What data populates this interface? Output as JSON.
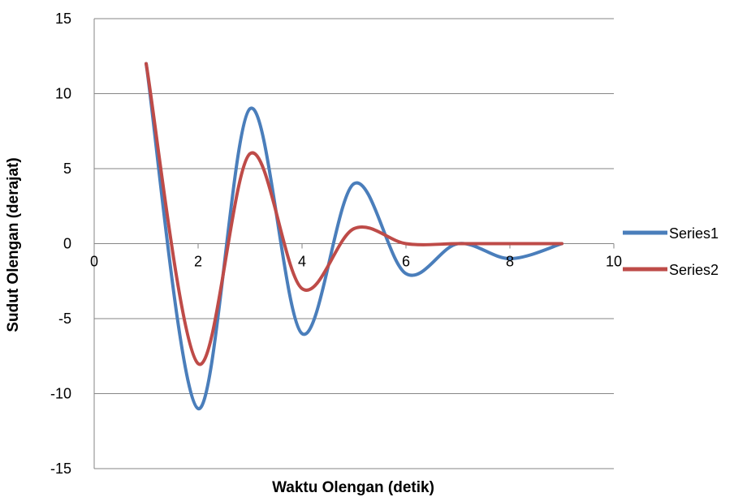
{
  "chart_data": {
    "type": "line",
    "title": "",
    "xlabel": "Waktu Olengan (detik)",
    "ylabel": "Sudut Olengan  (derajat)",
    "xlim": [
      0,
      10
    ],
    "ylim": [
      -15,
      15
    ],
    "xticks": [
      "0",
      "2",
      "4",
      "6",
      "8",
      "10"
    ],
    "yticks": [
      "15",
      "10",
      "5",
      "0",
      "-5",
      "-10",
      "-15"
    ],
    "grid": "horizontal",
    "smooth": true,
    "legend": "right",
    "x": [
      1,
      2,
      3,
      4,
      5,
      6,
      7,
      8,
      9
    ],
    "series": [
      {
        "name": "Series1",
        "color": "#4a7ebb",
        "values": [
          12,
          -11,
          9,
          -6,
          4,
          -2,
          0,
          -1,
          0
        ]
      },
      {
        "name": "Series2",
        "color": "#be4b48",
        "values": [
          12,
          -8,
          6,
          -3,
          1,
          0,
          0,
          0,
          0
        ]
      }
    ]
  }
}
